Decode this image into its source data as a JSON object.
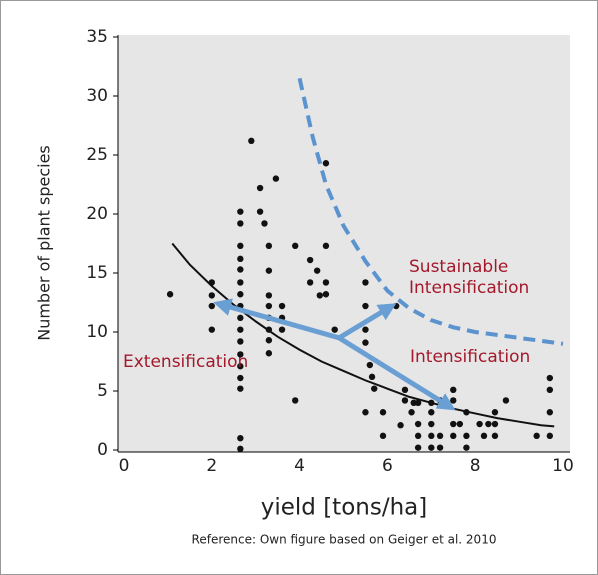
{
  "chart_data": {
    "type": "scatter",
    "ylabel": "Number of plant species",
    "xlabel": "yield [tons/ha]",
    "note": "Reference: Own figure based on Geiger et al. 2010",
    "xlim": [
      0,
      10
    ],
    "ylim": [
      0,
      35
    ],
    "xticks": [
      0,
      2,
      4,
      6,
      8,
      10
    ],
    "yticks": [
      0,
      5,
      10,
      15,
      20,
      25,
      30,
      35
    ],
    "color": "#111111",
    "x": [
      1.05,
      2.0,
      2.0,
      2.0,
      2.0,
      2.65,
      2.65,
      2.65,
      2.65,
      2.65,
      2.65,
      2.65,
      2.65,
      2.65,
      2.65,
      2.65,
      2.65,
      2.65,
      2.65,
      2.65,
      2.65,
      2.65,
      2.9,
      3.1,
      3.1,
      3.2,
      3.3,
      3.46,
      3.3,
      3.3,
      3.3,
      3.3,
      3.3,
      3.3,
      3.3,
      3.6,
      3.6,
      3.6,
      3.9,
      3.9,
      4.24,
      4.24,
      4.4,
      4.46,
      4.6,
      4.6,
      4.6,
      4.6,
      4.8,
      5.5,
      5.5,
      5.5,
      5.5,
      5.6,
      5.65,
      5.7,
      5.5,
      5.9,
      5.9,
      6.2,
      6.3,
      6.4,
      6.4,
      6.55,
      6.6,
      6.7,
      6.7,
      6.7,
      6.7,
      7.0,
      7.0,
      7.0,
      7.0,
      7.0,
      7.2,
      7.2,
      7.2,
      7.5,
      7.5,
      7.5,
      7.5,
      7.65,
      7.8,
      7.8,
      7.8,
      8.1,
      8.3,
      8.2,
      8.45,
      8.45,
      8.45,
      8.7,
      9.4,
      9.7,
      9.7,
      9.7,
      9.7
    ],
    "y": [
      13.2,
      14.2,
      13.1,
      12.2,
      10.2,
      20.2,
      19.2,
      17.3,
      16.2,
      15.3,
      14.2,
      13.2,
      12.2,
      11.2,
      10.2,
      9.2,
      8.1,
      7.1,
      6.1,
      5.2,
      1.0,
      0.1,
      26.2,
      22.2,
      20.2,
      19.2,
      17.3,
      23.0,
      15.2,
      13.1,
      12.2,
      11.2,
      10.2,
      9.3,
      8.2,
      10.2,
      11.2,
      12.2,
      17.3,
      4.2,
      16.1,
      14.2,
      15.2,
      13.1,
      24.3,
      17.3,
      14.2,
      13.2,
      10.2,
      14.2,
      12.2,
      10.2,
      9.1,
      7.2,
      6.2,
      5.2,
      3.2,
      3.2,
      1.2,
      12.2,
      2.1,
      5.1,
      4.2,
      3.2,
      4.0,
      4.0,
      2.2,
      1.2,
      0.2,
      4.0,
      3.2,
      2.2,
      1.2,
      0.2,
      4.2,
      1.2,
      0.2,
      5.1,
      4.2,
      2.2,
      1.2,
      2.2,
      3.2,
      1.2,
      0.2,
      2.2,
      2.2,
      1.2,
      3.2,
      2.2,
      1.2,
      4.2,
      1.2,
      6.1,
      5.1,
      3.2,
      1.2
    ],
    "curves": [
      {
        "color": "#111111",
        "style": "solid",
        "x": [
          1.1,
          1.5,
          2,
          2.5,
          3,
          3.5,
          4,
          4.5,
          5,
          5.5,
          6,
          6.5,
          7,
          7.5,
          8,
          8.5,
          9,
          9.5,
          9.8
        ],
        "y": [
          17.5,
          15.7,
          13.9,
          12.3,
          10.9,
          9.6,
          8.5,
          7.5,
          6.7,
          5.9,
          5.2,
          4.5,
          4.0,
          3.5,
          3.1,
          2.7,
          2.4,
          2.1,
          2.0
        ]
      },
      {
        "color": "#5b93cf",
        "style": "dashed",
        "x": [
          4,
          4.3,
          4.6,
          5,
          5.5,
          6,
          6.5,
          7,
          7.5,
          8,
          9,
          10
        ],
        "y": [
          31.5,
          26.5,
          22.5,
          19,
          16,
          13.5,
          12,
          11,
          10.4,
          10,
          9.5,
          9
        ]
      }
    ],
    "arrow_color": "#6a9fd4",
    "arrows": [
      {
        "x": [
          4.9,
          2.15
        ],
        "y": [
          9.5,
          12.4
        ]
      },
      {
        "x": [
          4.9,
          7.45
        ],
        "y": [
          9.5,
          3.6
        ]
      },
      {
        "x": [
          4.9,
          6.1
        ],
        "y": [
          9.5,
          12.2
        ]
      }
    ],
    "annotations": [
      "Sustainable",
      "Intensification",
      "Extensification",
      "Intensification"
    ]
  }
}
